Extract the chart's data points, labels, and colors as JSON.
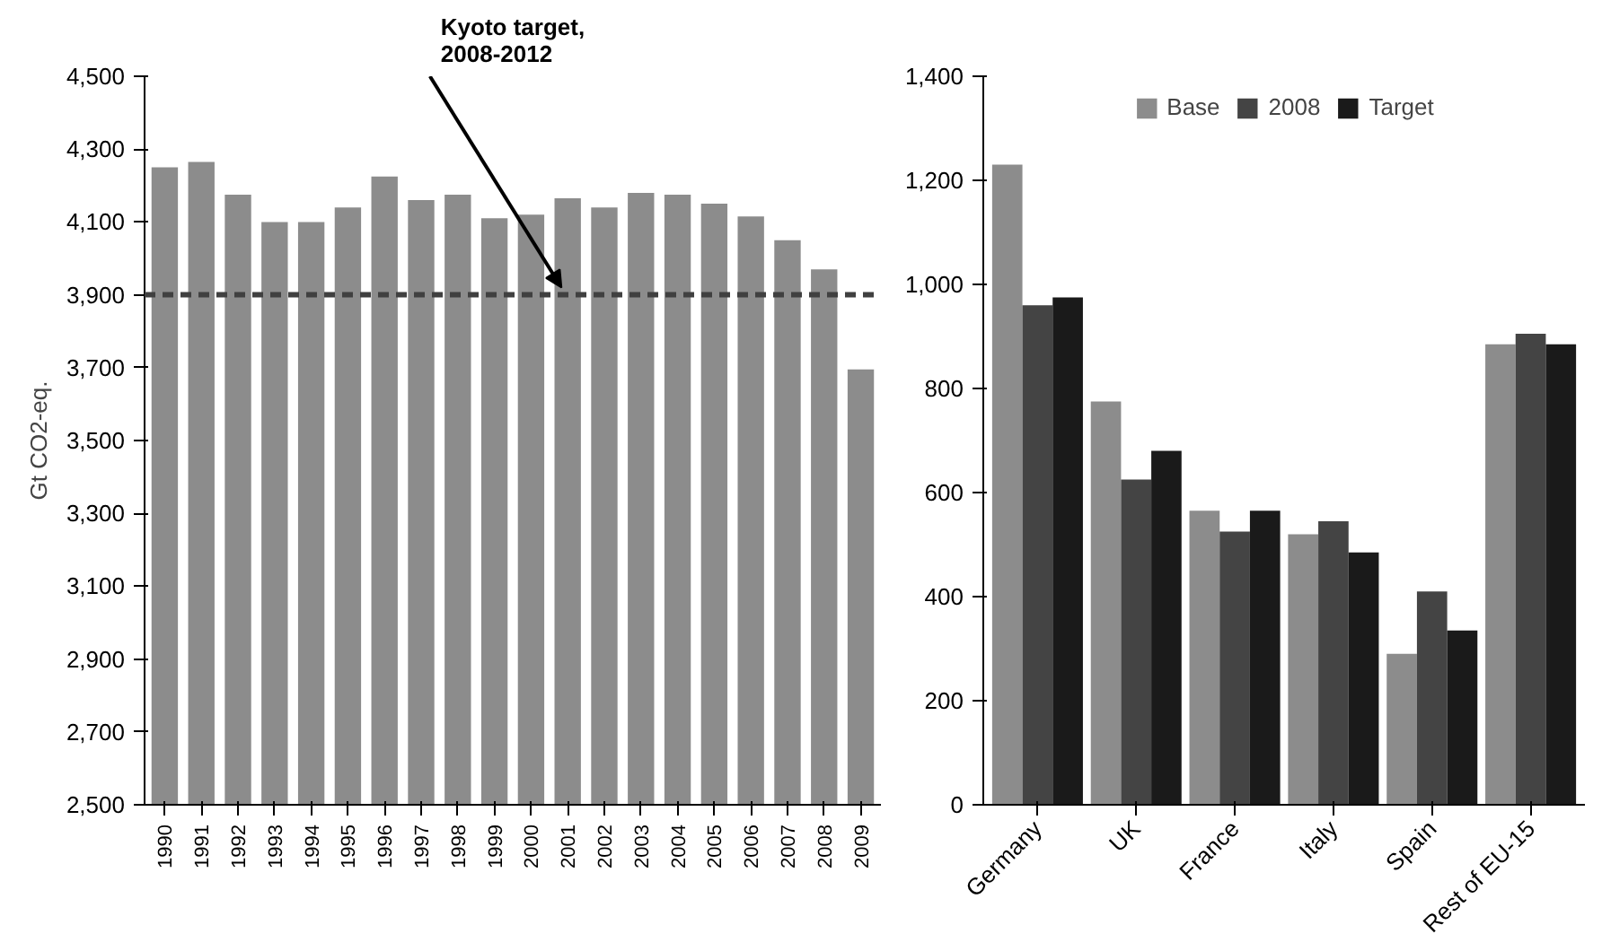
{
  "chart_data": [
    {
      "type": "bar",
      "ylabel": "Gt CO2-eq.",
      "categories": [
        "1990",
        "1991",
        "1992",
        "1993",
        "1994",
        "1995",
        "1996",
        "1997",
        "1998",
        "1999",
        "2000",
        "2001",
        "2002",
        "2003",
        "2004",
        "2005",
        "2006",
        "2007",
        "2008",
        "2009"
      ],
      "series": [
        {
          "color": "#8c8c8c",
          "values": [
            4250,
            4265,
            4175,
            4100,
            4100,
            4140,
            4225,
            4160,
            4175,
            4110,
            4120,
            4165,
            4140,
            4180,
            4175,
            4150,
            4115,
            4050,
            3970,
            3695
          ]
        }
      ],
      "ylim": [
        2500,
        4500
      ],
      "yticks": [
        {
          "value": 2500,
          "label": "2,500"
        },
        {
          "value": 2700,
          "label": "2,700"
        },
        {
          "value": 2900,
          "label": "2,900"
        },
        {
          "value": 3100,
          "label": "3,100"
        },
        {
          "value": 3300,
          "label": "3,300"
        },
        {
          "value": 3500,
          "label": "3,500"
        },
        {
          "value": 3700,
          "label": "3,700"
        },
        {
          "value": 3900,
          "label": "3,900"
        },
        {
          "value": 4100,
          "label": "4,100"
        },
        {
          "value": 4300,
          "label": "4,300"
        },
        {
          "value": 4500,
          "label": "4,500"
        }
      ],
      "ref_lines": [
        {
          "axis": "y",
          "value": 3900,
          "label": "Kyoto target,\n2008-2012",
          "color": "#404040",
          "line_style": "dashed"
        }
      ],
      "grid": false,
      "legend": false
    },
    {
      "type": "bar",
      "categories": [
        "Germany",
        "UK",
        "France",
        "Italy",
        "Spain",
        "Rest of EU-15"
      ],
      "series": [
        {
          "name": "Base",
          "color": "#8c8c8c",
          "values": [
            1230,
            775,
            565,
            520,
            290,
            885
          ]
        },
        {
          "name": "2008",
          "color": "#444444",
          "values": [
            960,
            625,
            525,
            545,
            410,
            905
          ]
        },
        {
          "name": "Target",
          "color": "#1a1a1a",
          "values": [
            975,
            680,
            565,
            485,
            335,
            885
          ]
        }
      ],
      "ylim": [
        0,
        1400
      ],
      "yticks": [
        0,
        200,
        400,
        600,
        800,
        {
          "value": 1000,
          "label": "1,000"
        },
        {
          "value": 1200,
          "label": "1,200"
        },
        {
          "value": 1400,
          "label": "1,400"
        }
      ],
      "grid": false,
      "legend": "top"
    }
  ]
}
